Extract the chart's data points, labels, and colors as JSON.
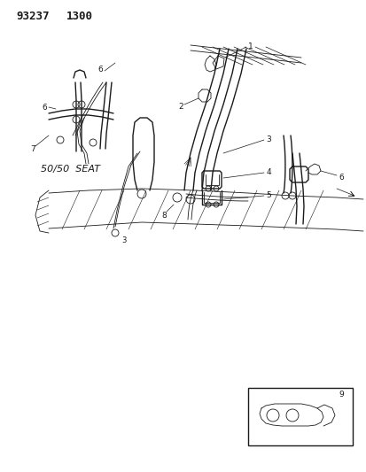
{
  "title": "93237  1300",
  "bg_color": "#ffffff",
  "lc": "#1a1a1a",
  "fig_width": 4.14,
  "fig_height": 5.33,
  "dpi": 100
}
